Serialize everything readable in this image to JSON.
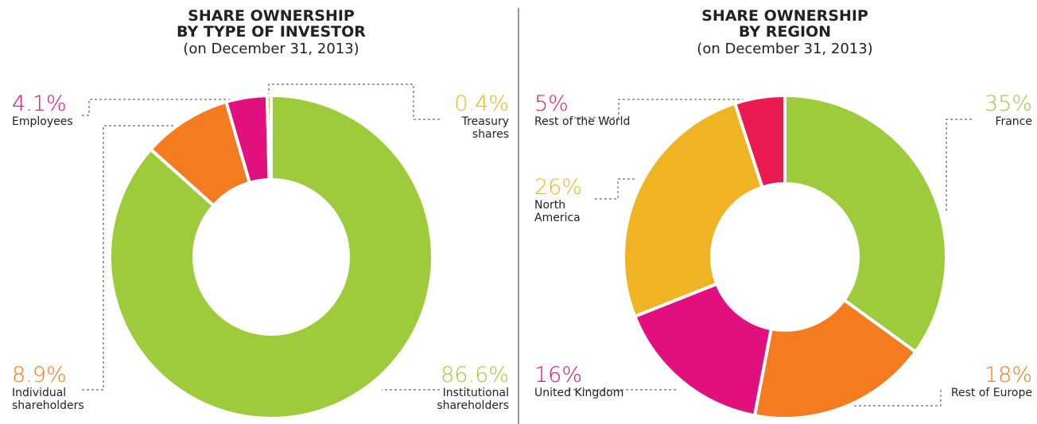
{
  "chart_data": [
    {
      "type": "donut",
      "title": "SHARE OWNERSHIP\nBY TYPE OF INVESTOR",
      "subtitle": "(on December 31, 2013)",
      "categories": [
        "Institutional\nshareholders",
        "Individual\nshareholders",
        "Employees",
        "Treasury\nshares"
      ],
      "values": [
        86.6,
        8.9,
        4.1,
        0.4
      ],
      "value_labels": [
        "86.6%",
        "8.9%",
        "4.1%",
        "0.4%"
      ],
      "colors": [
        "#9dcb3c",
        "#f47b20",
        "#e2107f",
        "#f0b323"
      ]
    },
    {
      "type": "donut",
      "title": "SHARE OWNERSHIP\nBY REGION",
      "subtitle": "(on December 31, 2013)",
      "categories": [
        "France",
        "Rest of Europe",
        "United Kingdom",
        "North\nAmerica",
        "Rest of the World"
      ],
      "values": [
        35,
        18,
        16,
        26,
        5
      ],
      "value_labels": [
        "35%",
        "18%",
        "16%",
        "26%",
        "5%"
      ],
      "colors": [
        "#9dcb3c",
        "#f47b20",
        "#e2107f",
        "#f0b323",
        "#ea1c4f"
      ]
    }
  ]
}
